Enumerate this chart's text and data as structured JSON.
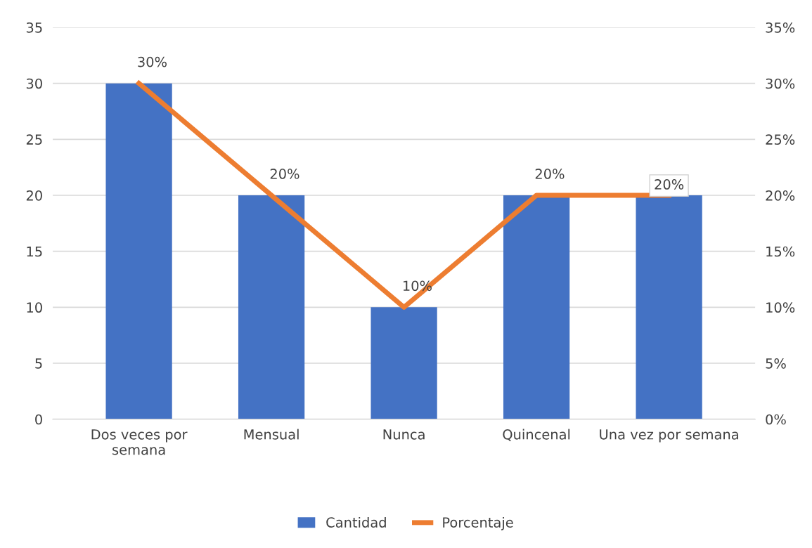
{
  "chart_data": {
    "type": "bar",
    "categories": [
      "Dos veces por\nsemana",
      "Mensual",
      "Nunca",
      "Quincenal",
      "Una vez por semana"
    ],
    "series": [
      {
        "name": "Cantidad",
        "color": "#4472c4",
        "values": [
          30,
          20,
          10,
          20,
          20
        ]
      },
      {
        "name": "Porcentaje",
        "type": "line",
        "axis": "y2",
        "color": "#ed7d31",
        "values": [
          30,
          20,
          10,
          20,
          20
        ],
        "value_labels": [
          "30%",
          "20%",
          "10%",
          "20%",
          "20%"
        ]
      }
    ],
    "ylim": [
      0,
      35
    ],
    "yticks": [
      0,
      5,
      10,
      15,
      20,
      25,
      30,
      35
    ],
    "y2lim": [
      0,
      35
    ],
    "y2ticks": [
      {
        "value": 0,
        "label": "0%"
      },
      {
        "value": 5,
        "label": "5%"
      },
      {
        "value": 10,
        "label": "10%"
      },
      {
        "value": 15,
        "label": "15%"
      },
      {
        "value": 20,
        "label": "20%"
      },
      {
        "value": 25,
        "label": "25%"
      },
      {
        "value": 30,
        "label": "30%"
      },
      {
        "value": 35,
        "label": "35%"
      }
    ],
    "grid": "y",
    "legend": "bottom",
    "marker": "none",
    "line_style": "solid"
  }
}
